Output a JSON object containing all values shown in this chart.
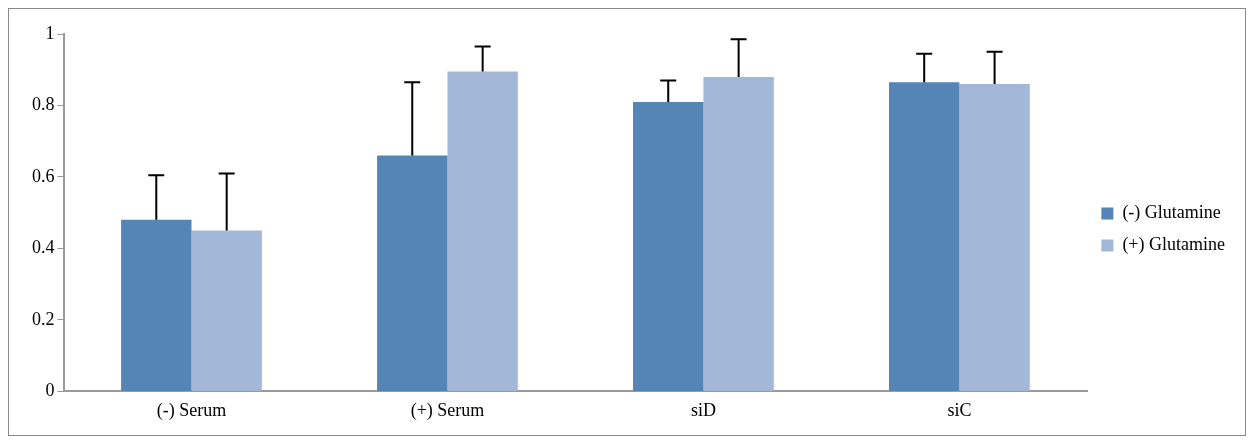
{
  "chart_data": {
    "type": "bar",
    "categories": [
      "(-) Serum",
      "(+) Serum",
      "siD",
      "siC"
    ],
    "series": [
      {
        "name": "(-) Glutamine",
        "color": "#5584b6",
        "values": [
          0.48,
          0.66,
          0.81,
          0.865
        ],
        "errors": [
          [
            0.48,
            0.605
          ],
          [
            0.66,
            0.865
          ],
          [
            0.81,
            0.87
          ],
          [
            0.865,
            0.945
          ]
        ]
      },
      {
        "name": "(+) Glutamine",
        "color": "#a3b7d8",
        "values": [
          0.45,
          0.895,
          0.88,
          0.86
        ],
        "errors": [
          [
            0.45,
            0.61
          ],
          [
            0.895,
            0.965
          ],
          [
            0.88,
            0.985
          ],
          [
            0.86,
            0.95
          ]
        ]
      }
    ],
    "ylim": [
      0,
      1
    ],
    "yticks": [
      0,
      0.2,
      0.4,
      0.6,
      0.8,
      1
    ],
    "grid": false,
    "legend": "right"
  }
}
